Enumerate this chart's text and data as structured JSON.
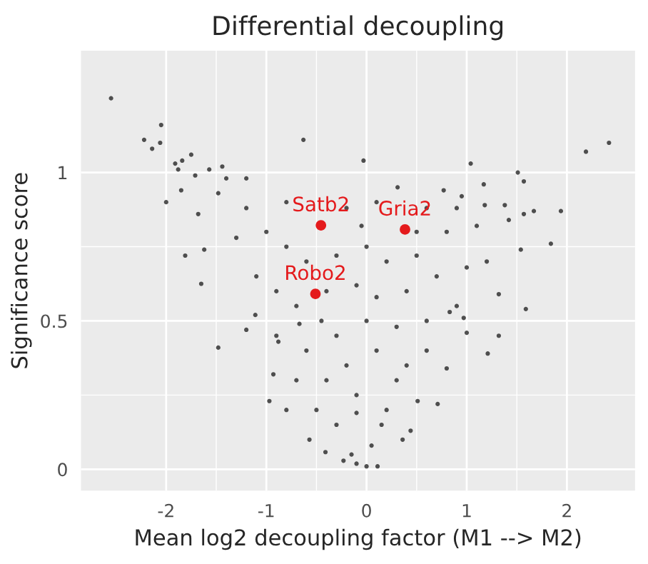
{
  "chart_data": {
    "type": "scatter",
    "title": "Differential decoupling",
    "xlabel": "Mean log2 decoupling factor (M1 --> M2)",
    "ylabel": "Significance score",
    "xlim": [
      -2.85,
      2.68
    ],
    "ylim": [
      -0.072,
      1.41
    ],
    "xticks": [
      -2,
      -1,
      0,
      1,
      2
    ],
    "yticks": [
      0,
      {
        "value": 0.5,
        "label": "0.5"
      },
      1
    ],
    "grid": true,
    "marker": "circle",
    "legend": false,
    "series": [
      {
        "color": "#333333",
        "x": [
          -2.55,
          -2.05,
          -2.22,
          -2.14,
          -2.06,
          -1.75,
          -1.91,
          -1.88,
          -1.84,
          -2.0,
          -1.85,
          -1.71,
          -1.57,
          -1.44,
          -1.4,
          -1.68,
          -1.81,
          -1.62,
          -0.63,
          -1.2,
          -1.48,
          -0.03,
          1.04,
          1.51,
          2.19,
          2.42,
          1.57,
          1.17,
          1.94,
          1.84,
          1.54,
          1.67,
          0.77,
          0.31,
          1.18,
          1.38,
          1.57,
          1.42,
          0.95,
          -1.65,
          -1.48,
          -1.2,
          -1.11,
          -0.97,
          -0.8,
          -0.57,
          -0.41,
          -0.23,
          -0.1,
          -0.93,
          -0.88,
          -0.67,
          1.59,
          1.32,
          1.21,
          1.32,
          1.0,
          0.71,
          0.51,
          0.44,
          0.36,
          0.11,
          0.0,
          0.8,
          0.83,
          0.97,
          -0.1,
          -1.0,
          -0.8,
          -0.6,
          -0.3,
          0.0,
          0.2,
          0.5,
          0.8,
          1.1,
          -1.3,
          -1.1,
          -0.9,
          -0.7,
          -0.4,
          -0.1,
          0.1,
          0.4,
          0.7,
          1.0,
          1.2,
          -0.9,
          -0.6,
          -0.3,
          0.0,
          0.3,
          0.6,
          0.9,
          -0.7,
          -0.4,
          -0.2,
          0.1,
          0.4,
          0.6,
          -0.5,
          -0.3,
          -0.1,
          0.2,
          0.3,
          -0.15,
          0.05,
          0.15,
          -1.2,
          -0.2,
          0.1,
          0.6,
          0.9,
          -0.45,
          0.5,
          -0.05,
          -0.8
        ],
        "values": [
          1.25,
          1.16,
          1.11,
          1.08,
          1.1,
          1.06,
          1.03,
          1.01,
          1.04,
          0.9,
          0.94,
          0.99,
          1.01,
          1.02,
          0.98,
          0.86,
          0.72,
          0.74,
          1.11,
          0.98,
          0.93,
          1.04,
          1.03,
          1.0,
          1.07,
          1.1,
          0.97,
          0.96,
          0.87,
          0.76,
          0.74,
          0.87,
          0.94,
          0.95,
          0.89,
          0.89,
          0.86,
          0.84,
          0.92,
          0.625,
          0.41,
          0.47,
          0.52,
          0.23,
          0.2,
          0.1,
          0.058,
          0.029,
          0.019,
          0.32,
          0.43,
          0.49,
          0.54,
          0.45,
          0.39,
          0.59,
          0.46,
          0.22,
          0.23,
          0.13,
          0.1,
          0.01,
          0.01,
          0.34,
          0.53,
          0.51,
          0.19,
          0.8,
          0.75,
          0.7,
          0.72,
          0.75,
          0.7,
          0.72,
          0.8,
          0.82,
          0.78,
          0.65,
          0.6,
          0.55,
          0.6,
          0.62,
          0.58,
          0.6,
          0.65,
          0.68,
          0.7,
          0.45,
          0.4,
          0.45,
          0.5,
          0.48,
          0.5,
          0.55,
          0.3,
          0.3,
          0.35,
          0.4,
          0.35,
          0.4,
          0.2,
          0.15,
          0.25,
          0.2,
          0.3,
          0.05,
          0.08,
          0.15,
          0.88,
          0.88,
          0.9,
          0.88,
          0.88,
          0.5,
          0.8,
          0.82,
          0.9
        ]
      },
      {
        "color": "#e41a1c",
        "x": [
          -0.455,
          0.384,
          -0.51
        ],
        "values": [
          0.822,
          0.808,
          0.591
        ]
      }
    ],
    "annotations": [
      {
        "text": "Satb2",
        "x": -0.455,
        "y": 0.822
      },
      {
        "text": "Gria2",
        "x": 0.384,
        "y": 0.808
      },
      {
        "text": "Robo2",
        "x": -0.51,
        "y": 0.591
      }
    ]
  }
}
